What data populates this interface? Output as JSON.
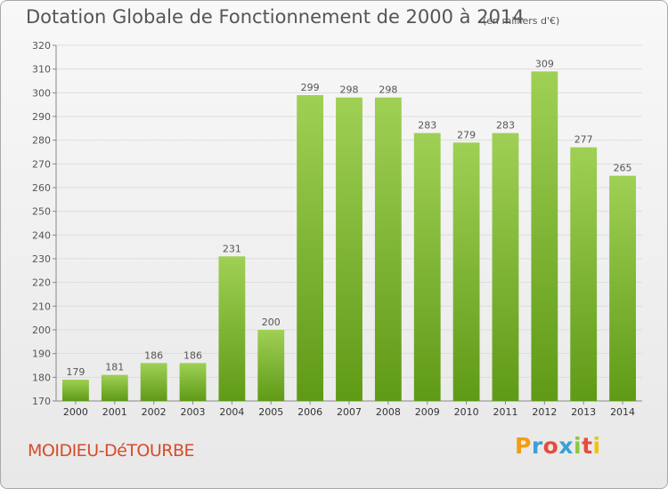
{
  "header": {
    "title": "Dotation Globale de Fonctionnement de 2000 à 2014",
    "unit": "(en milliers d'€)"
  },
  "footer": {
    "commune": "MOIDIEU-DéTOURBE",
    "logo_letters": [
      "P",
      "r",
      "o",
      "x",
      "i",
      "t",
      "i"
    ],
    "logo_colors": [
      "#f39c12",
      "#3aa0d8",
      "#e74c3c",
      "#3aa0d8",
      "#8cc63f",
      "#e74c3c",
      "#f1c40f"
    ]
  },
  "colors": {
    "bar_top": "#9fd055",
    "bar_bottom": "#5f9a16",
    "grid": "#dddddd",
    "text": "#555555"
  },
  "chart_data": {
    "type": "bar",
    "title": "Dotation Globale de Fonctionnement de 2000 à 2014",
    "xlabel": "",
    "ylabel": "",
    "categories": [
      "2000",
      "2001",
      "2002",
      "2003",
      "2004",
      "2005",
      "2006",
      "2007",
      "2008",
      "2009",
      "2010",
      "2011",
      "2012",
      "2013",
      "2014"
    ],
    "values": [
      179,
      181,
      186,
      186,
      231,
      200,
      299,
      298,
      298,
      283,
      279,
      283,
      309,
      277,
      265
    ],
    "ylim": [
      170,
      320
    ],
    "yticks": [
      170,
      180,
      190,
      200,
      210,
      220,
      230,
      240,
      250,
      260,
      270,
      280,
      290,
      300,
      310,
      320
    ],
    "grid": true,
    "data_labels": true
  }
}
